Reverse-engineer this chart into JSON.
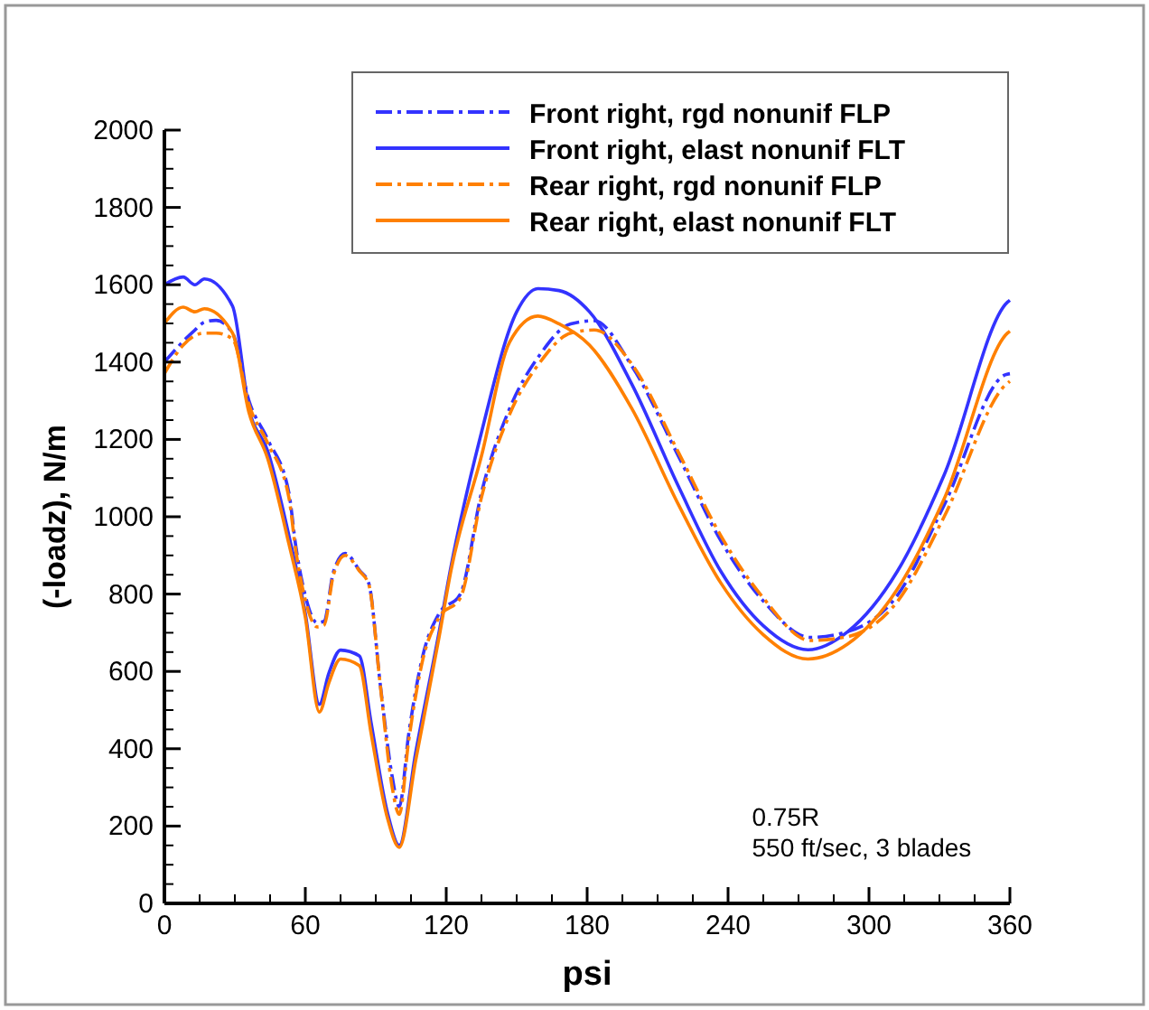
{
  "chart_data": {
    "type": "line",
    "xlabel": "psi",
    "ylabel": "(-loadz), N/m",
    "xlim": [
      0,
      360
    ],
    "ylim": [
      0,
      2000
    ],
    "xticks": [
      0,
      60,
      120,
      180,
      240,
      300,
      360
    ],
    "yticks": [
      0,
      200,
      400,
      600,
      800,
      1000,
      1200,
      1400,
      1600,
      1800,
      2000
    ],
    "grid": false,
    "legend": "top",
    "annotations": [
      "0.75R",
      "550 ft/sec, 3 blades"
    ],
    "series": [
      {
        "name": "Front right, rgd nonunif FLP",
        "color": "#3333ff",
        "line_style": "dashed",
        "x": [
          0,
          13,
          17,
          22,
          29,
          36,
          44,
          53,
          56,
          60,
          65,
          68,
          72,
          77,
          83,
          87,
          92,
          97,
          100,
          104,
          110,
          117,
          126,
          135,
          147,
          160,
          173,
          183,
          199,
          219,
          237,
          255,
          275,
          291,
          312,
          332,
          358,
          360
        ],
        "values": [
          1400,
          1483,
          1503,
          1508,
          1475,
          1300,
          1200,
          1062,
          922,
          796,
          726,
          730,
          858,
          905,
          862,
          828,
          562,
          328,
          250,
          437,
          640,
          750,
          800,
          1062,
          1280,
          1420,
          1499,
          1507,
          1390,
          1155,
          937,
          782,
          688,
          703,
          796,
          1030,
          1367,
          1370
        ]
      },
      {
        "name": "Front right, elast nonunif FLT",
        "color": "#3333ff",
        "line_style": "solid",
        "x": [
          0,
          8,
          13,
          17,
          29,
          36,
          44,
          53,
          60,
          66,
          70,
          75,
          83,
          88,
          95,
          100,
          107,
          117,
          122,
          135,
          150,
          159,
          168,
          181,
          199,
          219,
          237,
          255,
          274,
          291,
          312,
          332,
          359,
          360
        ],
        "values": [
          1600,
          1620,
          1600,
          1615,
          1545,
          1280,
          1170,
          952,
          750,
          515,
          595,
          655,
          640,
          468,
          234,
          150,
          390,
          703,
          870,
          1218,
          1530,
          1590,
          1585,
          1530,
          1343,
          1077,
          858,
          718,
          656,
          703,
          858,
          1108,
          1555,
          1560
        ]
      },
      {
        "name": "Rear right, rgd nonunif FLP",
        "color": "#ff8000",
        "line_style": "dashed",
        "x": [
          0,
          8,
          17,
          22,
          29,
          36,
          44,
          53,
          56,
          60,
          65,
          68,
          72,
          77,
          83,
          87,
          92,
          97,
          100,
          104,
          110,
          117,
          126,
          135,
          147,
          160,
          173,
          183,
          199,
          219,
          237,
          255,
          275,
          291,
          312,
          332,
          358,
          360
        ],
        "values": [
          1370,
          1444,
          1475,
          1475,
          1460,
          1290,
          1190,
          1050,
          910,
          785,
          715,
          720,
          850,
          900,
          860,
          825,
          560,
          300,
          230,
          420,
          630,
          740,
          790,
          1050,
          1265,
          1400,
          1475,
          1483,
          1395,
          1165,
          950,
          790,
          680,
          690,
          780,
          1000,
          1340,
          1350
        ]
      },
      {
        "name": "Rear right, elast nonunif FLT",
        "color": "#ff8000",
        "line_style": "solid",
        "x": [
          0,
          8,
          13,
          17,
          29,
          36,
          44,
          53,
          60,
          66,
          70,
          75,
          83,
          88,
          95,
          100,
          107,
          117,
          122,
          135,
          147,
          159,
          168,
          181,
          199,
          219,
          237,
          255,
          274,
          291,
          312,
          332,
          359,
          360
        ],
        "values": [
          1500,
          1542,
          1530,
          1538,
          1475,
          1270,
          1150,
          930,
          740,
          495,
          570,
          632,
          615,
          440,
          220,
          145,
          370,
          690,
          860,
          1157,
          1452,
          1519,
          1499,
          1444,
          1280,
          1030,
          828,
          695,
          632,
          671,
          812,
          1046,
          1475,
          1480
        ]
      }
    ]
  }
}
